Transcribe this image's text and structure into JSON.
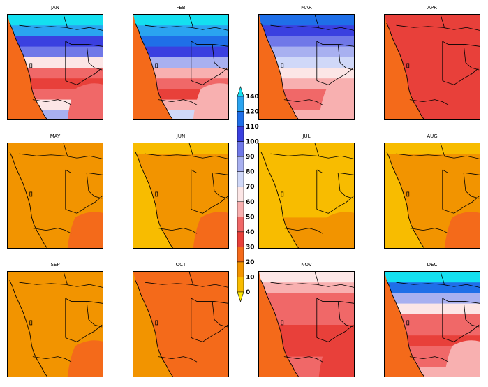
{
  "figure": {
    "panels": [
      {
        "month": "JAN",
        "lat_levels": [
          140,
          120,
          100,
          90,
          60,
          40,
          30,
          40,
          60,
          80
        ],
        "coast_level": 20,
        "inland_se_level": 40
      },
      {
        "month": "FEB",
        "lat_levels": [
          140,
          120,
          110,
          100,
          80,
          50,
          40,
          30,
          50,
          70
        ],
        "coast_level": 20,
        "inland_se_level": 50
      },
      {
        "month": "MAR",
        "lat_levels": [
          110,
          100,
          90,
          80,
          70,
          60,
          50,
          40,
          40,
          50
        ],
        "coast_level": 20,
        "inland_se_level": 50
      },
      {
        "month": "APR",
        "lat_levels": [
          30,
          30,
          30,
          30,
          30,
          30,
          30,
          30,
          30,
          30
        ],
        "coast_level": 20,
        "inland_se_level": 30
      },
      {
        "month": "MAY",
        "lat_levels": [
          10,
          10,
          10,
          10,
          10,
          10,
          10,
          10,
          10,
          10
        ],
        "coast_level": 10,
        "inland_se_level": 20
      },
      {
        "month": "JUN",
        "lat_levels": [
          0,
          10,
          10,
          10,
          10,
          10,
          10,
          10,
          10,
          10
        ],
        "coast_level": 0,
        "inland_se_level": 20
      },
      {
        "month": "JUL",
        "lat_levels": [
          0,
          0,
          0,
          0,
          0,
          0,
          0,
          10,
          10,
          10
        ],
        "coast_level": 0,
        "inland_se_level": 10
      },
      {
        "month": "AUG",
        "lat_levels": [
          0,
          10,
          10,
          10,
          10,
          10,
          10,
          10,
          10,
          10
        ],
        "coast_level": 0,
        "inland_se_level": 20
      },
      {
        "month": "SEP",
        "lat_levels": [
          10,
          10,
          10,
          10,
          10,
          10,
          10,
          10,
          10,
          10
        ],
        "coast_level": 10,
        "inland_se_level": 20
      },
      {
        "month": "OCT",
        "lat_levels": [
          20,
          20,
          20,
          20,
          20,
          20,
          20,
          20,
          20,
          20
        ],
        "coast_level": 10,
        "inland_se_level": 20
      },
      {
        "month": "NOV",
        "lat_levels": [
          60,
          50,
          40,
          40,
          40,
          30,
          30,
          30,
          40,
          40
        ],
        "coast_level": 20,
        "inland_se_level": 30
      },
      {
        "month": "DEC",
        "lat_levels": [
          140,
          110,
          80,
          60,
          40,
          40,
          30,
          40,
          40,
          50
        ],
        "coast_level": 20,
        "inland_se_level": 50
      }
    ]
  },
  "colorbar": {
    "labels": [
      "140",
      "120",
      "110",
      "100",
      "90",
      "80",
      "70",
      "60",
      "50",
      "40",
      "30",
      "20",
      "10",
      "0"
    ],
    "levels": [
      0,
      10,
      20,
      30,
      40,
      50,
      60,
      70,
      80,
      90,
      100,
      110,
      120,
      140
    ],
    "colors": [
      "#ffea00",
      "#f8bc00",
      "#f29400",
      "#f46a1a",
      "#e8403a",
      "#f06868",
      "#f8b0b0",
      "#fce6e6",
      "#d0d8f8",
      "#a8b0f0",
      "#7078e8",
      "#3a40e0",
      "#1f6fe8",
      "#2aa4f0",
      "#14e0f0"
    ]
  },
  "style": {
    "coast_color": "#000000",
    "lake_color": "#000000"
  }
}
